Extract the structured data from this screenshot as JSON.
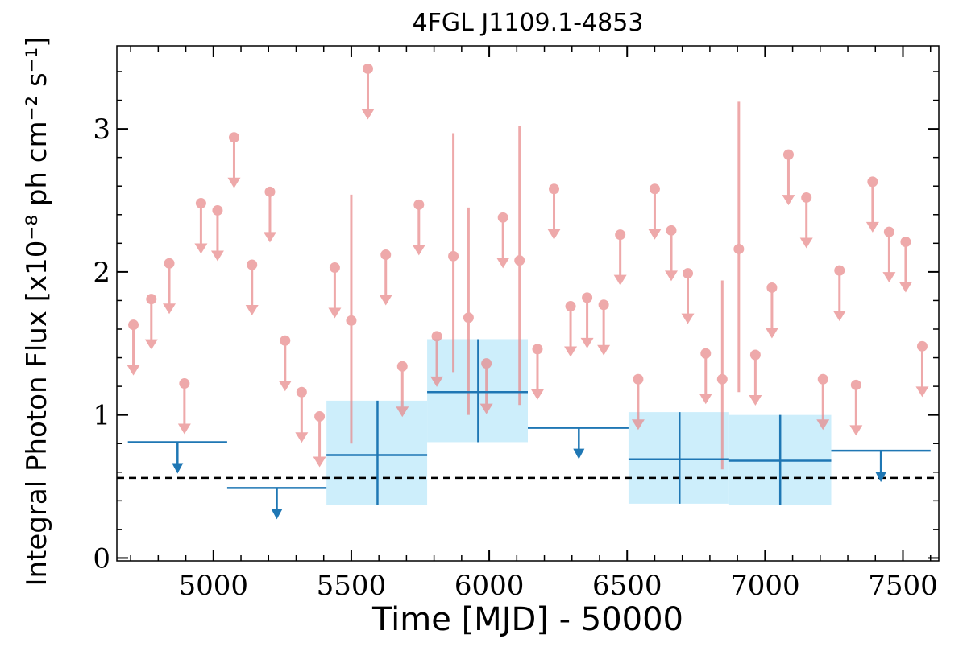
{
  "chart_data": {
    "type": "scatter",
    "title": "4FGL J1109.1-4853",
    "xlabel": "Time [MJD] - 50000",
    "ylabel": "Integral Photon Flux [x10⁻⁸ ph cm⁻² s⁻¹]",
    "xlim": [
      4650,
      7630
    ],
    "ylim": [
      -0.02,
      3.58
    ],
    "x_ticks": [
      5000,
      5500,
      6000,
      6500,
      7000,
      7500
    ],
    "y_ticks": [
      0,
      1,
      2,
      3
    ],
    "x_tick_labels": [
      "5000",
      "5500",
      "6000",
      "6500",
      "7000",
      "7500"
    ],
    "y_tick_labels": [
      "0",
      "1",
      "2",
      "3"
    ],
    "grid": false,
    "reference_line": {
      "y": 0.56,
      "style": "dashed"
    },
    "series": [
      {
        "color": "#e8888a",
        "kind": "monthly-bins",
        "points": [
          {
            "x": 4710,
            "y": 1.63,
            "upper_limit": true
          },
          {
            "x": 4775,
            "y": 1.81,
            "upper_limit": true
          },
          {
            "x": 4840,
            "y": 2.06,
            "upper_limit": true
          },
          {
            "x": 4895,
            "y": 1.22,
            "upper_limit": true
          },
          {
            "x": 4955,
            "y": 2.48,
            "upper_limit": true
          },
          {
            "x": 5015,
            "y": 2.43,
            "upper_limit": true
          },
          {
            "x": 5075,
            "y": 2.94,
            "upper_limit": true
          },
          {
            "x": 5140,
            "y": 2.05,
            "upper_limit": true
          },
          {
            "x": 5205,
            "y": 2.56,
            "upper_limit": true
          },
          {
            "x": 5260,
            "y": 1.52,
            "upper_limit": true
          },
          {
            "x": 5320,
            "y": 1.16,
            "upper_limit": true
          },
          {
            "x": 5385,
            "y": 0.99,
            "upper_limit": true
          },
          {
            "x": 5440,
            "y": 2.03,
            "upper_limit": true
          },
          {
            "x": 5500,
            "y": 1.66,
            "err_low": 0.8,
            "err_high": 2.54
          },
          {
            "x": 5560,
            "y": 3.42,
            "upper_limit": true
          },
          {
            "x": 5625,
            "y": 2.12,
            "upper_limit": true
          },
          {
            "x": 5685,
            "y": 1.34,
            "upper_limit": true
          },
          {
            "x": 5745,
            "y": 2.47,
            "upper_limit": true
          },
          {
            "x": 5810,
            "y": 1.55,
            "upper_limit": true
          },
          {
            "x": 5870,
            "y": 2.11,
            "err_low": 1.3,
            "err_high": 2.97
          },
          {
            "x": 5925,
            "y": 1.68,
            "err_low": 1.0,
            "err_high": 2.45
          },
          {
            "x": 5990,
            "y": 1.36,
            "upper_limit": true
          },
          {
            "x": 6050,
            "y": 2.38,
            "upper_limit": true
          },
          {
            "x": 6110,
            "y": 2.08,
            "err_low": 1.07,
            "err_high": 3.02
          },
          {
            "x": 6175,
            "y": 1.46,
            "upper_limit": true
          },
          {
            "x": 6235,
            "y": 2.58,
            "upper_limit": true
          },
          {
            "x": 6295,
            "y": 1.76,
            "upper_limit": true
          },
          {
            "x": 6355,
            "y": 1.82,
            "upper_limit": true
          },
          {
            "x": 6415,
            "y": 1.77,
            "upper_limit": true
          },
          {
            "x": 6475,
            "y": 2.26,
            "upper_limit": true
          },
          {
            "x": 6540,
            "y": 1.25,
            "upper_limit": true
          },
          {
            "x": 6600,
            "y": 2.58,
            "upper_limit": true
          },
          {
            "x": 6660,
            "y": 2.29,
            "upper_limit": true
          },
          {
            "x": 6720,
            "y": 1.99,
            "upper_limit": true
          },
          {
            "x": 6785,
            "y": 1.43,
            "upper_limit": true
          },
          {
            "x": 6845,
            "y": 1.25,
            "err_low": 0.62,
            "err_high": 1.94
          },
          {
            "x": 6905,
            "y": 2.16,
            "err_low": 1.16,
            "err_high": 3.19
          },
          {
            "x": 6965,
            "y": 1.42,
            "upper_limit": true
          },
          {
            "x": 7025,
            "y": 1.89,
            "upper_limit": true
          },
          {
            "x": 7085,
            "y": 2.82,
            "upper_limit": true
          },
          {
            "x": 7150,
            "y": 2.52,
            "upper_limit": true
          },
          {
            "x": 7210,
            "y": 1.25,
            "upper_limit": true
          },
          {
            "x": 7270,
            "y": 2.01,
            "upper_limit": true
          },
          {
            "x": 7330,
            "y": 1.21,
            "upper_limit": true
          },
          {
            "x": 7390,
            "y": 2.63,
            "upper_limit": true
          },
          {
            "x": 7450,
            "y": 2.28,
            "upper_limit": true
          },
          {
            "x": 7510,
            "y": 2.21,
            "upper_limit": true
          },
          {
            "x": 7570,
            "y": 1.48,
            "upper_limit": true
          }
        ]
      },
      {
        "color": "#1f77b4",
        "band_color": "#cdeefb",
        "kind": "yearly-bins",
        "points": [
          {
            "x": 4870,
            "x_low": 4690,
            "x_high": 5050,
            "y": 0.81,
            "upper_limit": true
          },
          {
            "x": 5230,
            "x_low": 5050,
            "x_high": 5410,
            "y": 0.49,
            "upper_limit": true
          },
          {
            "x": 5595,
            "x_low": 5410,
            "x_high": 5775,
            "y": 0.72,
            "err_low": 0.37,
            "err_high": 1.1
          },
          {
            "x": 5960,
            "x_low": 5775,
            "x_high": 6140,
            "y": 1.16,
            "err_low": 0.81,
            "err_high": 1.53
          },
          {
            "x": 6325,
            "x_low": 6140,
            "x_high": 6505,
            "y": 0.91,
            "upper_limit": true
          },
          {
            "x": 6690,
            "x_low": 6505,
            "x_high": 6870,
            "y": 0.69,
            "err_low": 0.38,
            "err_high": 1.02
          },
          {
            "x": 7055,
            "x_low": 6870,
            "x_high": 7240,
            "y": 0.68,
            "err_low": 0.37,
            "err_high": 1.0
          },
          {
            "x": 7420,
            "x_low": 7240,
            "x_high": 7600,
            "y": 0.75,
            "upper_limit": true
          }
        ]
      }
    ]
  }
}
